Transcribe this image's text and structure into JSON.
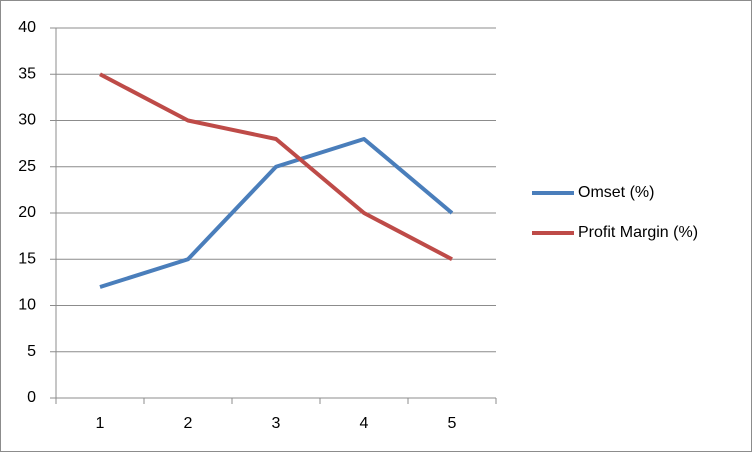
{
  "chart_data": {
    "type": "line",
    "categories": [
      "1",
      "2",
      "3",
      "4",
      "5"
    ],
    "series": [
      {
        "name": "Omset (%)",
        "color": "#4a7ebb",
        "values": [
          12,
          15,
          25,
          28,
          20
        ]
      },
      {
        "name": "Profit Margin (%)",
        "color": "#be4b48",
        "values": [
          35,
          30,
          28,
          20,
          15
        ]
      }
    ],
    "ylim": [
      0,
      40
    ],
    "yticks": [
      0,
      5,
      10,
      15,
      20,
      25,
      30,
      35,
      40
    ],
    "grid": true,
    "legend": "right"
  }
}
